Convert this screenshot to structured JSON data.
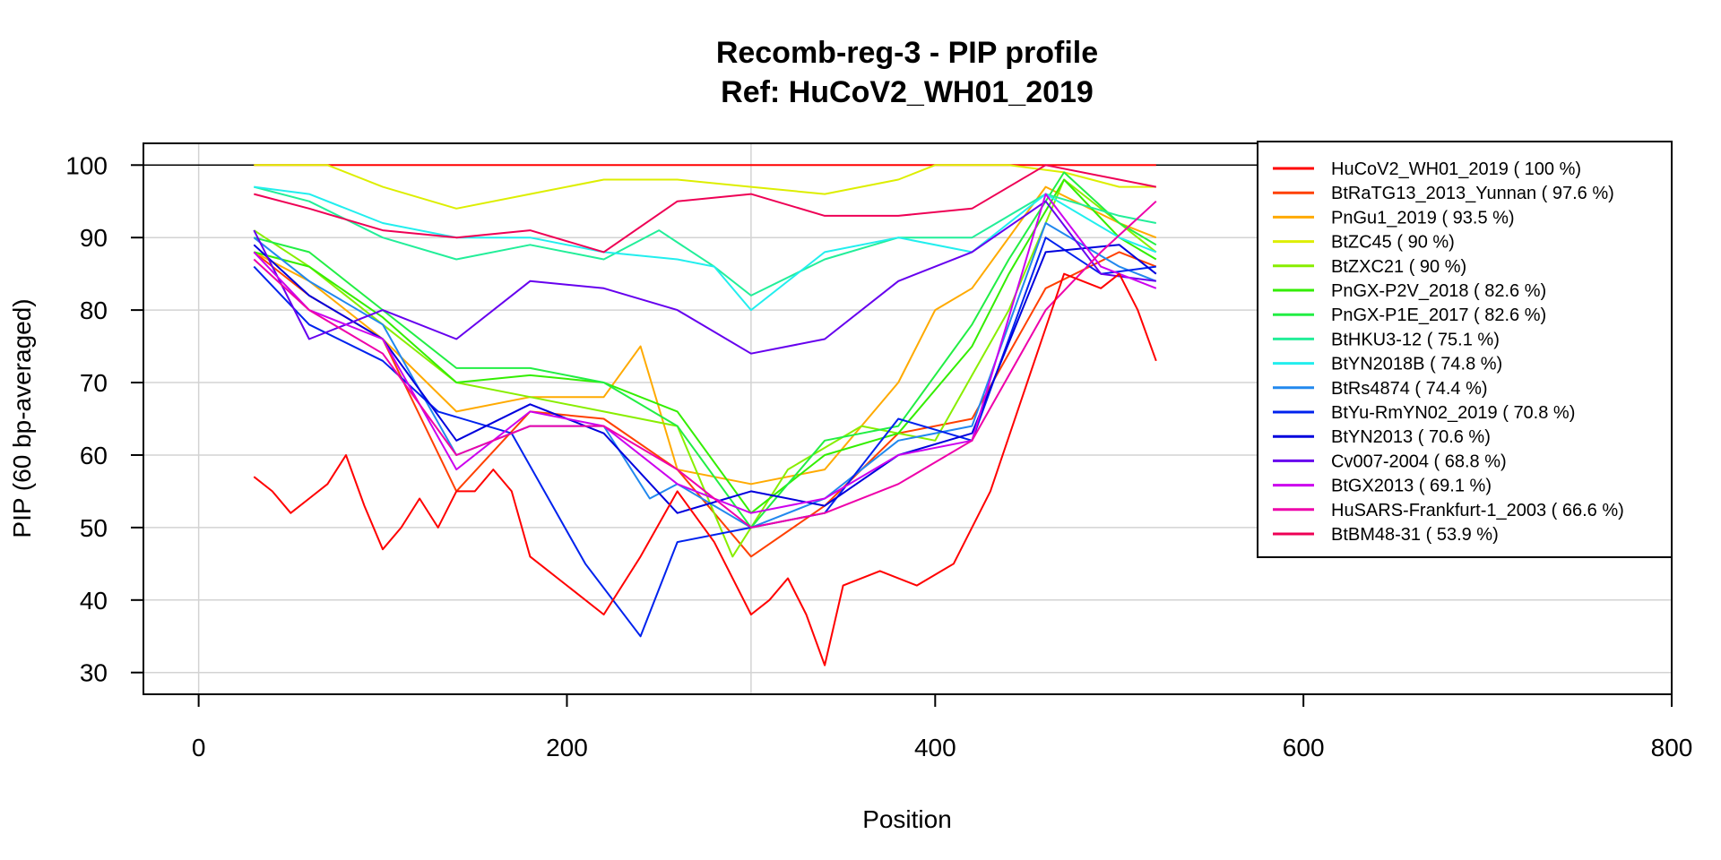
{
  "chart_data": {
    "type": "line",
    "title": "Recomb-reg-3 - PIP profile",
    "subtitle": "Ref: HuCoV2_WH01_2019",
    "xlabel": "Position",
    "ylabel": "PIP (60 bp-averaged)",
    "xlim": [
      -30,
      800
    ],
    "ylim": [
      27,
      103
    ],
    "xticks": [
      0,
      200,
      400,
      600,
      800
    ],
    "yticks": [
      30,
      40,
      50,
      60,
      70,
      80,
      90,
      100
    ],
    "xtick_labels": [
      "0",
      "200",
      "400",
      "600",
      "800"
    ],
    "ytick_labels": [
      "30",
      "40",
      "50",
      "60",
      "70",
      "80",
      "90",
      "100"
    ],
    "grid": true,
    "grid_x": [
      0,
      300
    ],
    "reference_line": 100,
    "legend_position": "top-right",
    "series": [
      {
        "name": "HuCoV2_WH01_2019",
        "legend": "HuCoV2_WH01_2019 ( 100 %)",
        "color": "#ff0000",
        "x": [
          30,
          520
        ],
        "y": [
          100,
          100
        ]
      },
      {
        "name": "BtRaTG13_2013_Yunnan",
        "legend": "BtRaTG13_2013_Yunnan ( 97.6 %)",
        "color": "#ff4000",
        "x": [
          30,
          60,
          100,
          140,
          180,
          220,
          260,
          300,
          340,
          380,
          420,
          460,
          500,
          520
        ],
        "y": [
          88,
          82,
          76,
          55,
          66,
          65,
          58,
          46,
          53,
          63,
          65,
          83,
          88,
          86
        ]
      },
      {
        "name": "PnGu1_2019",
        "legend": "PnGu1_2019 ( 93.5 %)",
        "color": "#ffaa00",
        "x": [
          30,
          60,
          100,
          140,
          180,
          220,
          240,
          260,
          300,
          340,
          380,
          400,
          420,
          460,
          500,
          520
        ],
        "y": [
          88,
          84,
          76,
          66,
          68,
          68,
          75,
          58,
          56,
          58,
          70,
          80,
          83,
          97,
          92,
          90
        ]
      },
      {
        "name": "BtZC45",
        "legend": "BtZC45 ( 90 %)",
        "color": "#ddee00",
        "x": [
          30,
          70,
          100,
          140,
          180,
          220,
          260,
          300,
          340,
          380,
          400,
          440,
          470,
          500,
          520
        ],
        "y": [
          100,
          100,
          97,
          94,
          96,
          98,
          98,
          97,
          96,
          98,
          100,
          100,
          99,
          97,
          97
        ]
      },
      {
        "name": "BtZXC21",
        "legend": "BtZXC21 ( 90 %)",
        "color": "#88ee00",
        "x": [
          30,
          60,
          100,
          140,
          180,
          220,
          260,
          290,
          320,
          360,
          400,
          440,
          470,
          500,
          520
        ],
        "y": [
          91,
          86,
          78,
          70,
          68,
          66,
          64,
          46,
          58,
          64,
          62,
          80,
          98,
          92,
          88
        ]
      },
      {
        "name": "PnGX-P2V_2018",
        "legend": "PnGX-P2V_2018 ( 82.6 %)",
        "color": "#33ee00",
        "x": [
          30,
          60,
          100,
          140,
          180,
          220,
          260,
          300,
          340,
          380,
          420,
          440,
          470,
          500,
          520
        ],
        "y": [
          88,
          86,
          79,
          70,
          71,
          70,
          66,
          52,
          60,
          63,
          75,
          85,
          98,
          90,
          87
        ]
      },
      {
        "name": "PnGX-P1E_2017",
        "legend": "PnGX-P1E_2017 ( 82.6 %)",
        "color": "#22ee44",
        "x": [
          30,
          60,
          100,
          140,
          180,
          220,
          260,
          300,
          340,
          380,
          420,
          440,
          470,
          500,
          520
        ],
        "y": [
          90,
          88,
          80,
          72,
          72,
          70,
          64,
          50,
          62,
          64,
          78,
          87,
          99,
          92,
          89
        ]
      },
      {
        "name": "BtHKU3-12",
        "legend": "BtHKU3-12 ( 75.1 %)",
        "color": "#22ee99",
        "x": [
          30,
          60,
          100,
          140,
          180,
          220,
          250,
          280,
          300,
          340,
          380,
          420,
          460,
          500,
          520
        ],
        "y": [
          97,
          95,
          90,
          87,
          89,
          87,
          91,
          86,
          82,
          87,
          90,
          90,
          96,
          93,
          92
        ]
      },
      {
        "name": "BtYN2018B",
        "legend": "BtYN2018B ( 74.8 %)",
        "color": "#22eeee",
        "x": [
          30,
          60,
          100,
          140,
          180,
          220,
          260,
          280,
          300,
          340,
          380,
          420,
          460,
          500,
          520
        ],
        "y": [
          97,
          96,
          92,
          90,
          90,
          88,
          87,
          86,
          80,
          88,
          90,
          88,
          96,
          90,
          88
        ]
      },
      {
        "name": "BtRs4874",
        "legend": "BtRs4874 ( 74.4 %)",
        "color": "#2288ee",
        "x": [
          30,
          60,
          100,
          140,
          180,
          220,
          245,
          260,
          300,
          340,
          380,
          420,
          460,
          500,
          520
        ],
        "y": [
          90,
          84,
          78,
          60,
          64,
          64,
          54,
          56,
          50,
          54,
          62,
          64,
          92,
          86,
          84
        ]
      },
      {
        "name": "BtYu-RmYN02_2019",
        "legend": "BtYu-RmYN02_2019 ( 70.8 %)",
        "color": "#0022ee",
        "x": [
          30,
          60,
          100,
          130,
          170,
          210,
          240,
          260,
          300,
          340,
          380,
          420,
          460,
          490,
          520
        ],
        "y": [
          86,
          78,
          73,
          66,
          63,
          45,
          35,
          48,
          50,
          52,
          65,
          62,
          90,
          85,
          86
        ]
      },
      {
        "name": "BtYN2013",
        "legend": "BtYN2013 ( 70.6 %)",
        "color": "#0000dd",
        "x": [
          30,
          60,
          100,
          140,
          180,
          220,
          260,
          300,
          340,
          380,
          420,
          460,
          500,
          520
        ],
        "y": [
          89,
          82,
          76,
          62,
          67,
          63,
          52,
          55,
          53,
          60,
          63,
          88,
          89,
          85
        ]
      },
      {
        "name": "Cv007-2004",
        "legend": "Cv007-2004 ( 68.8 %)",
        "color": "#6600ee",
        "x": [
          30,
          60,
          100,
          140,
          180,
          220,
          260,
          300,
          340,
          380,
          420,
          460,
          490,
          520
        ],
        "y": [
          91,
          76,
          80,
          76,
          84,
          83,
          80,
          74,
          76,
          84,
          88,
          95,
          85,
          84
        ]
      },
      {
        "name": "BtGX2013",
        "legend": "BtGX2013 ( 69.1 %)",
        "color": "#cc00ee",
        "x": [
          30,
          60,
          100,
          140,
          180,
          220,
          260,
          300,
          340,
          380,
          420,
          460,
          490,
          520
        ],
        "y": [
          88,
          80,
          76,
          58,
          66,
          64,
          56,
          52,
          54,
          60,
          62,
          96,
          86,
          83
        ]
      },
      {
        "name": "HuSARS-Frankfurt-1_2003",
        "legend": "HuSARS-Frankfurt-1_2003 ( 66.6 %)",
        "color": "#ee00aa",
        "x": [
          30,
          60,
          100,
          140,
          180,
          220,
          260,
          300,
          340,
          380,
          420,
          460,
          490,
          520
        ],
        "y": [
          87,
          80,
          74,
          60,
          64,
          64,
          58,
          50,
          52,
          56,
          62,
          80,
          88,
          95
        ]
      },
      {
        "name": "BtBM48-31",
        "legend": "BtBM48-31 ( 53.9 %)",
        "color": "#ee0055",
        "x": [
          30,
          60,
          100,
          140,
          180,
          220,
          260,
          300,
          340,
          380,
          420,
          460,
          500,
          520
        ],
        "y": [
          96,
          94,
          91,
          90,
          91,
          88,
          95,
          96,
          93,
          93,
          94,
          100,
          98,
          97
        ]
      },
      {
        "name": "",
        "legend": "",
        "color": "#ff0000",
        "x": [
          30,
          40,
          50,
          60,
          70,
          80,
          90,
          100,
          110,
          120,
          130,
          140,
          150,
          160,
          170,
          180,
          200,
          220,
          240,
          260,
          280,
          300,
          310,
          320,
          330,
          340,
          350,
          370,
          390,
          410,
          430,
          450,
          470,
          490,
          500,
          510,
          520
        ],
        "y": [
          57,
          55,
          52,
          54,
          56,
          60,
          53,
          47,
          50,
          54,
          50,
          55,
          55,
          58,
          55,
          46,
          42,
          38,
          46,
          55,
          48,
          38,
          40,
          43,
          38,
          31,
          42,
          44,
          42,
          45,
          55,
          70,
          85,
          83,
          85,
          80,
          73
        ]
      }
    ]
  }
}
